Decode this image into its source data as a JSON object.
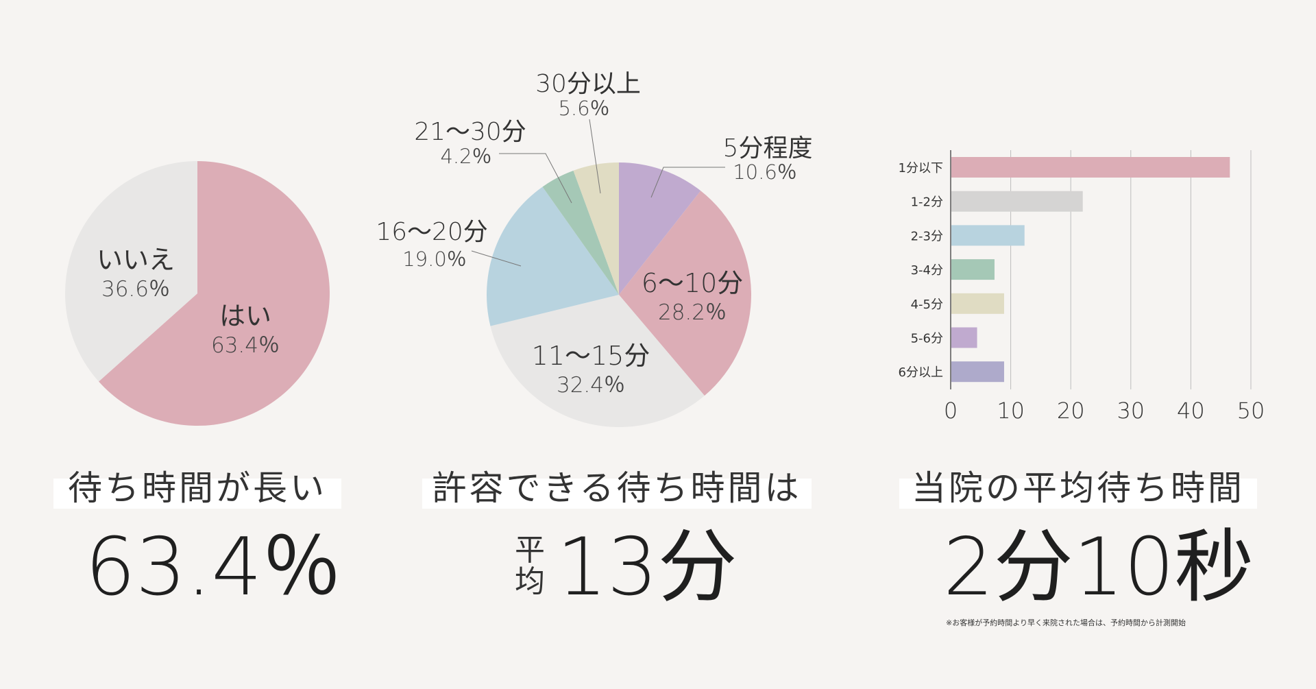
{
  "chart_data": [
    {
      "type": "pie",
      "slices": [
        {
          "label": "はい",
          "value": 63.4,
          "value_text": "63.4％",
          "color": "#dcadb6"
        },
        {
          "label": "いいえ",
          "value": 36.6,
          "value_text": "36.6％",
          "color": "#e8e7e6"
        }
      ]
    },
    {
      "type": "pie",
      "slices": [
        {
          "label": "5分程度",
          "value": 10.6,
          "value_text": "10.6％",
          "color": "#c0aacf"
        },
        {
          "label": "6～10分",
          "value": 28.2,
          "value_text": "28.2％",
          "color": "#dcadb6"
        },
        {
          "label": "11～15分",
          "value": 32.4,
          "value_text": "32.4％",
          "color": "#e8e7e6"
        },
        {
          "label": "16～20分",
          "value": 19.0,
          "value_text": "19.0％",
          "color": "#b8d3df"
        },
        {
          "label": "21～30分",
          "value": 4.2,
          "value_text": "4.2％",
          "color": "#a5c8b6"
        },
        {
          "label": "30分以上",
          "value": 5.6,
          "value_text": "5.6％",
          "color": "#e0dcc3"
        }
      ]
    },
    {
      "type": "bar",
      "orientation": "horizontal",
      "categories": [
        "1分以下",
        "1-2分",
        "2-3分",
        "3-4分",
        "4-5分",
        "5-6分",
        "6分以上"
      ],
      "values": [
        46.5,
        22,
        12.3,
        7.3,
        8.9,
        4.4,
        8.9
      ],
      "colors": [
        "#dcadb6",
        "#d5d4d3",
        "#b8d3df",
        "#a5c8b6",
        "#e0dcc3",
        "#c0aacf",
        "#aeaacb"
      ],
      "xlim": [
        0,
        50
      ],
      "xticks": [
        "0",
        "10",
        "20",
        "30",
        "40",
        "50"
      ],
      "grid": true
    }
  ],
  "panels": {
    "left": {
      "caption": "待ち時間が長い",
      "big_value": "63.4％"
    },
    "center": {
      "caption": "許容できる待ち時間は",
      "avg_label": "平均",
      "big_value": "13分"
    },
    "right": {
      "caption": "当院の平均待ち時間",
      "big_value": "2分10秒",
      "note": "※お客様が予約時間より早く来院された場合は、予約時間から計測開始"
    }
  }
}
